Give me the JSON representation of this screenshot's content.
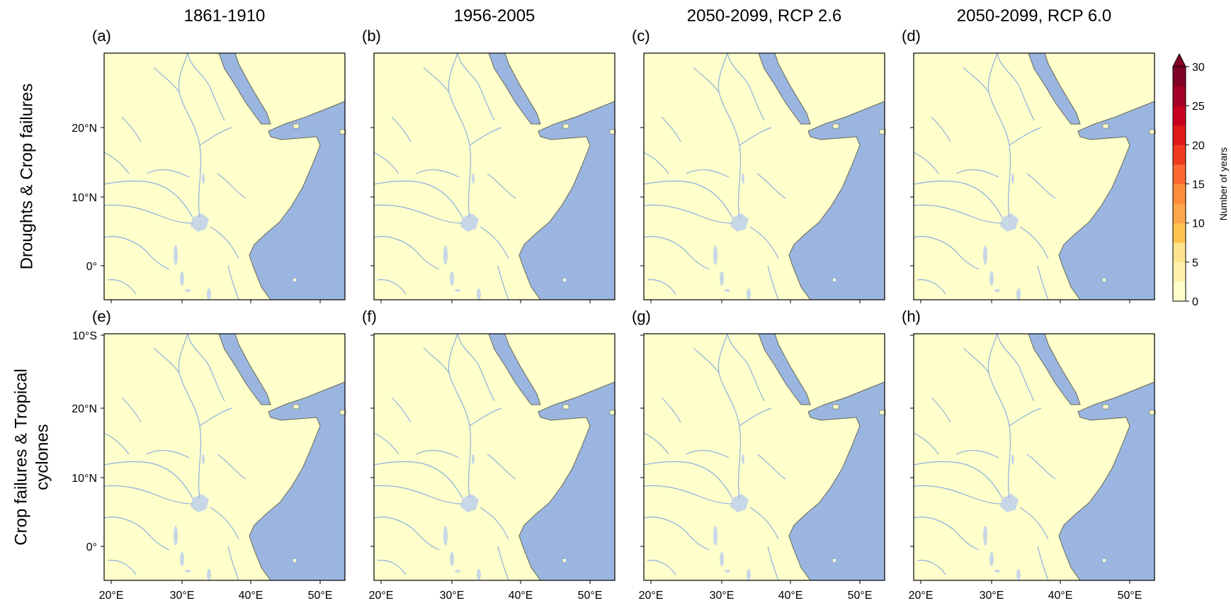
{
  "column_titles": [
    "1861-1910",
    "1956-2005",
    "2050-2099, RCP 2.6",
    "2050-2099, RCP 6.0"
  ],
  "row_titles": [
    [
      "Droughts & Crop failures"
    ],
    [
      "Crop failures & Tropical",
      "cyclones"
    ]
  ],
  "panel_labels": [
    "(a)",
    "(b)",
    "(c)",
    "(d)",
    "(e)",
    "(f)",
    "(g)",
    "(h)"
  ],
  "lat_ticks": [
    "20°N",
    "10°N",
    "0°",
    "10°S"
  ],
  "lon_ticks": [
    "20°E",
    "30°E",
    "40°E",
    "50°E"
  ],
  "colorbar": {
    "label": "Number of years",
    "ticks": [
      "0",
      "5",
      "10",
      "15",
      "20",
      "25",
      "30"
    ],
    "levels": [
      0,
      30
    ],
    "extend": "max",
    "colors": [
      "#ffffcc",
      "#fff2ae",
      "#fee391",
      "#fec44f",
      "#fea64a",
      "#fd8d3c",
      "#fc6a32",
      "#f03b20",
      "#e31a1c",
      "#c6001e",
      "#a50026",
      "#800026"
    ]
  },
  "map_colors": {
    "land": "#ffffcc",
    "ocean": "#9ab6e0",
    "lakes": "#c8d7e6",
    "rivers": "#8eb0dd",
    "coast": "#666655"
  }
}
